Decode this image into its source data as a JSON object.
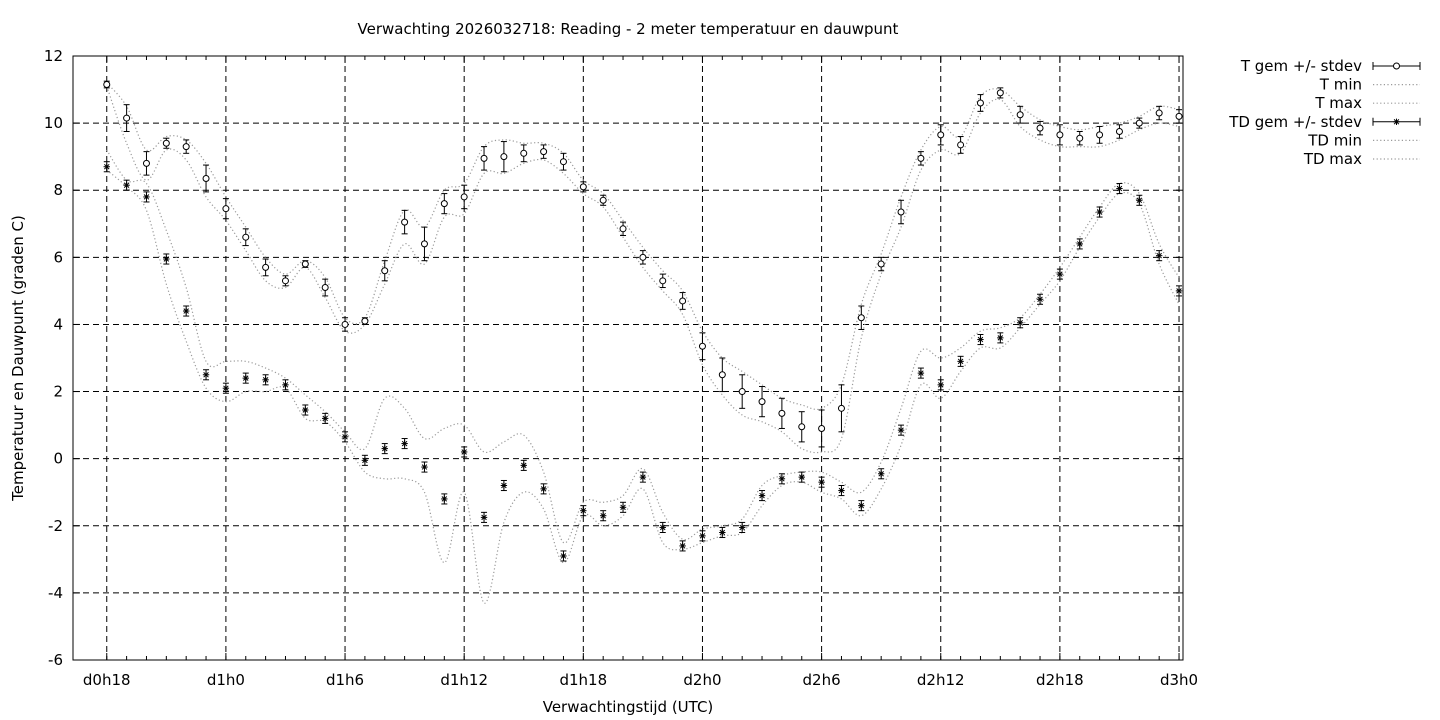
{
  "chart_data": {
    "type": "line",
    "title": "Verwachting 2026032718: Reading - 2 meter temperatuur en dauwpunt",
    "xlabel": "Verwachtingstijd (UTC)",
    "ylabel": "Temperatuur en Dauwpunt (graden C)",
    "ylim": [
      -6,
      12
    ],
    "xlim": [
      -1.7,
      54.2
    ],
    "y_ticks": [
      -6,
      -4,
      -2,
      0,
      2,
      4,
      6,
      8,
      10,
      12
    ],
    "x_ticks": [
      {
        "pos": 0,
        "label": "d0h18"
      },
      {
        "pos": 6,
        "label": "d1h0"
      },
      {
        "pos": 12,
        "label": "d1h6"
      },
      {
        "pos": 18,
        "label": "d1h12"
      },
      {
        "pos": 24,
        "label": "d1h18"
      },
      {
        "pos": 30,
        "label": "d2h0"
      },
      {
        "pos": 36,
        "label": "d2h6"
      },
      {
        "pos": 42,
        "label": "d2h12"
      },
      {
        "pos": 48,
        "label": "d2h18"
      },
      {
        "pos": 54,
        "label": "d3h0"
      }
    ],
    "grid": true,
    "legend_position": "right",
    "x": [
      0,
      1,
      2,
      3,
      4,
      5,
      6,
      7,
      8,
      9,
      10,
      11,
      12,
      13,
      14,
      15,
      16,
      17,
      18,
      19,
      20,
      21,
      22,
      23,
      24,
      25,
      26,
      27,
      28,
      29,
      30,
      31,
      32,
      33,
      34,
      35,
      36,
      37,
      38,
      39,
      40,
      41,
      42,
      43,
      44,
      45,
      46,
      47,
      48,
      49,
      50,
      51,
      52,
      53,
      54
    ],
    "series": [
      {
        "name": "T gem +/- stdev",
        "marker": "circle",
        "values": [
          11.15,
          10.15,
          8.8,
          9.4,
          9.3,
          8.35,
          7.45,
          6.6,
          5.7,
          5.3,
          5.8,
          5.1,
          4.0,
          4.1,
          5.6,
          7.05,
          6.4,
          7.6,
          7.8,
          8.95,
          9.0,
          9.1,
          9.15,
          8.85,
          8.1,
          7.7,
          6.85,
          6.0,
          5.3,
          4.7,
          3.35,
          2.5,
          2.0,
          1.7,
          1.35,
          0.95,
          0.9,
          1.5,
          4.2,
          5.8,
          7.35,
          8.95,
          9.65,
          9.35,
          10.6,
          10.9,
          10.25,
          9.85,
          9.65,
          9.55,
          9.65,
          9.75,
          10.0,
          10.3,
          10.2
        ],
        "stdev": [
          0.1,
          0.4,
          0.35,
          0.15,
          0.2,
          0.4,
          0.3,
          0.25,
          0.25,
          0.15,
          0.1,
          0.25,
          0.2,
          0.1,
          0.3,
          0.35,
          0.5,
          0.3,
          0.35,
          0.35,
          0.45,
          0.25,
          0.2,
          0.25,
          0.15,
          0.15,
          0.2,
          0.2,
          0.2,
          0.25,
          0.4,
          0.5,
          0.5,
          0.45,
          0.45,
          0.45,
          0.55,
          0.7,
          0.35,
          0.2,
          0.35,
          0.2,
          0.3,
          0.25,
          0.25,
          0.15,
          0.25,
          0.2,
          0.3,
          0.2,
          0.25,
          0.2,
          0.15,
          0.2,
          0.2
        ]
      },
      {
        "name": "T min",
        "style": "dotted",
        "values": [
          11.1,
          9.4,
          8.3,
          9.2,
          8.9,
          7.8,
          7.1,
          6.2,
          5.3,
          5.1,
          5.7,
          4.8,
          3.8,
          4.0,
          5.2,
          6.4,
          5.8,
          7.2,
          7.3,
          8.5,
          8.5,
          8.8,
          8.9,
          8.5,
          7.9,
          7.5,
          6.6,
          5.7,
          5.0,
          4.3,
          2.8,
          1.9,
          1.3,
          1.1,
          0.8,
          0.3,
          0.2,
          0.6,
          3.6,
          5.5,
          6.9,
          8.6,
          9.2,
          9.1,
          10.3,
          10.7,
          9.9,
          9.5,
          9.3,
          9.3,
          9.3,
          9.5,
          9.8,
          10.0,
          9.9
        ]
      },
      {
        "name": "T max",
        "style": "dotted",
        "values": [
          11.2,
          10.5,
          9.2,
          9.6,
          9.5,
          8.8,
          7.8,
          6.9,
          6.0,
          5.5,
          5.9,
          5.4,
          4.2,
          4.2,
          5.9,
          7.4,
          6.9,
          8.0,
          8.2,
          9.3,
          9.5,
          9.4,
          9.4,
          9.1,
          8.3,
          7.9,
          7.1,
          6.3,
          5.6,
          5.0,
          3.8,
          3.0,
          2.6,
          2.2,
          1.8,
          1.6,
          1.5,
          2.2,
          4.6,
          6.1,
          7.8,
          9.2,
          9.9,
          9.6,
          10.8,
          11.0,
          10.5,
          10.1,
          9.9,
          9.8,
          9.9,
          10.0,
          10.2,
          10.5,
          10.4
        ]
      },
      {
        "name": "TD gem +/- stdev",
        "marker": "star",
        "values": [
          8.7,
          8.15,
          7.8,
          5.95,
          4.4,
          2.5,
          2.1,
          2.4,
          2.35,
          2.2,
          1.45,
          1.2,
          0.65,
          -0.05,
          0.3,
          0.45,
          -0.25,
          -1.2,
          0.2,
          -1.75,
          -0.8,
          -0.2,
          -0.9,
          -2.9,
          -1.55,
          -1.7,
          -1.45,
          -0.55,
          -2.05,
          -2.6,
          -2.3,
          -2.2,
          -2.05,
          -1.1,
          -0.6,
          -0.55,
          -0.7,
          -0.95,
          -1.4,
          -0.45,
          0.85,
          2.55,
          2.2,
          2.9,
          3.55,
          3.6,
          4.05,
          4.75,
          5.5,
          6.4,
          7.35,
          8.05,
          7.7,
          6.05,
          5.0
        ]
      },
      {
        "name": "TD min",
        "style": "dotted",
        "values": [
          8.6,
          8.1,
          7.4,
          5.2,
          3.5,
          2.1,
          1.7,
          2.0,
          2.0,
          2.1,
          1.2,
          1.1,
          0.5,
          -0.4,
          -0.6,
          -0.6,
          -1.0,
          -3.1,
          -1.0,
          -4.3,
          -1.9,
          -1.0,
          -1.5,
          -3.1,
          -1.7,
          -2.0,
          -1.7,
          -0.9,
          -2.5,
          -2.7,
          -2.5,
          -2.3,
          -2.2,
          -1.4,
          -0.8,
          -0.7,
          -1.0,
          -1.2,
          -1.7,
          -0.9,
          0.4,
          2.2,
          1.8,
          2.6,
          3.3,
          3.3,
          3.9,
          4.6,
          5.3,
          6.3,
          7.2,
          7.9,
          7.6,
          5.8,
          4.6
        ]
      },
      {
        "name": "TD max",
        "style": "dotted",
        "values": [
          9.2,
          8.3,
          8.2,
          6.8,
          5.1,
          2.9,
          2.9,
          2.9,
          2.7,
          2.4,
          1.9,
          1.4,
          0.8,
          0.3,
          1.8,
          1.5,
          0.6,
          0.9,
          1.0,
          0.2,
          0.5,
          0.7,
          -0.4,
          -2.5,
          -1.3,
          -1.3,
          -1.1,
          -0.3,
          -1.6,
          -2.4,
          -2.1,
          -2.0,
          -1.8,
          -0.8,
          -0.5,
          -0.4,
          -0.4,
          -0.7,
          -1.0,
          -0.1,
          1.5,
          3.2,
          3.0,
          3.3,
          3.8,
          3.9,
          4.2,
          4.9,
          5.7,
          6.6,
          7.5,
          8.2,
          7.9,
          6.4,
          5.4
        ]
      }
    ]
  }
}
